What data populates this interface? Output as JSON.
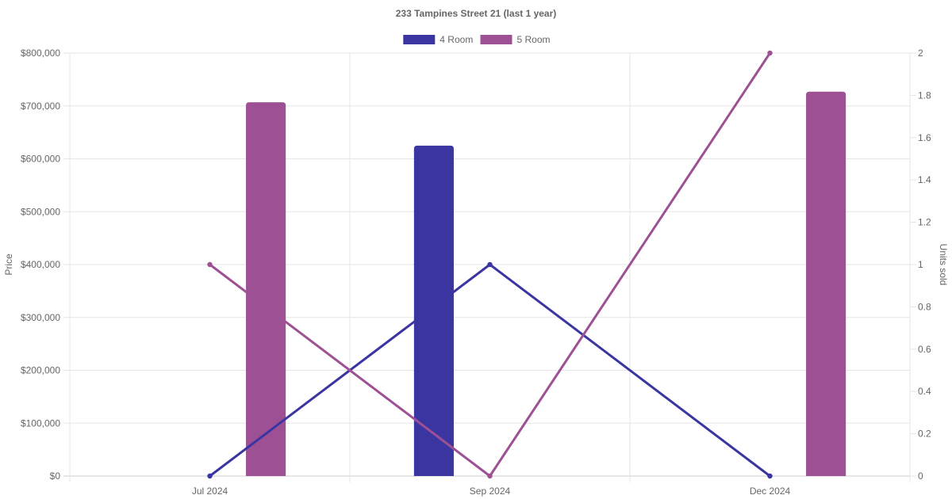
{
  "chart_data": {
    "type": "bar",
    "title": "233 Tampines Street 21 (last 1 year)",
    "categories": [
      "Jul 2024",
      "Sep 2024",
      "Dec 2024"
    ],
    "y_axis_left": {
      "label": "Price",
      "ylim": [
        0,
        800000
      ],
      "ticks": [
        "$0",
        "$100,000",
        "$200,000",
        "$300,000",
        "$400,000",
        "$500,000",
        "$600,000",
        "$700,000",
        "$800,000"
      ]
    },
    "y_axis_right": {
      "label": "Units sold",
      "ylim": [
        0,
        2
      ],
      "ticks": [
        "0",
        "0.2",
        "0.4",
        "0.6",
        "0.8",
        "1",
        "1.2",
        "1.4",
        "1.6",
        "1.8",
        "2"
      ]
    },
    "series": [
      {
        "name": "4 Room",
        "color": "#3a35a0",
        "price": [
          null,
          625000,
          null
        ],
        "units_sold": [
          0,
          1,
          0
        ]
      },
      {
        "name": "5 Room",
        "color": "#9e5094",
        "price": [
          707000,
          null,
          727000
        ],
        "units_sold": [
          1,
          0,
          2
        ]
      }
    ],
    "grid": true,
    "legend_position": "top"
  }
}
